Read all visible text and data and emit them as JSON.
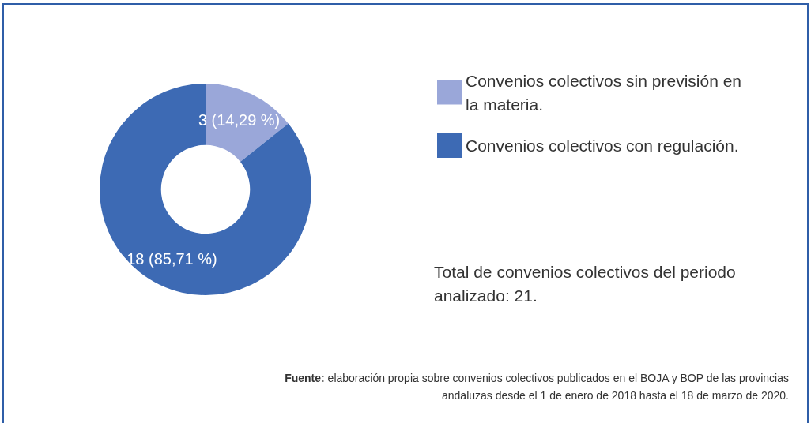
{
  "chart_data": {
    "type": "donut",
    "categories": [
      "Convenios colectivos sin previsión en la materia.",
      "Convenios colectivos con regulación."
    ],
    "values": [
      3,
      18
    ],
    "colors": [
      "#9aa7d9",
      "#3d6ab4"
    ],
    "value_labels": [
      "3 (14,29 %)",
      "18 (85,71 %)"
    ],
    "legend": "right",
    "annotations": [
      "Total de convenios colectivos del periodo analizado: 21.",
      "Fuente: elaboración propia sobre convenios colectivos publicados en el BOJA y BOP de las provincias andaluzas desde el 1 de enero de 2018 hasta el 18 de marzo de 2020."
    ]
  }
}
